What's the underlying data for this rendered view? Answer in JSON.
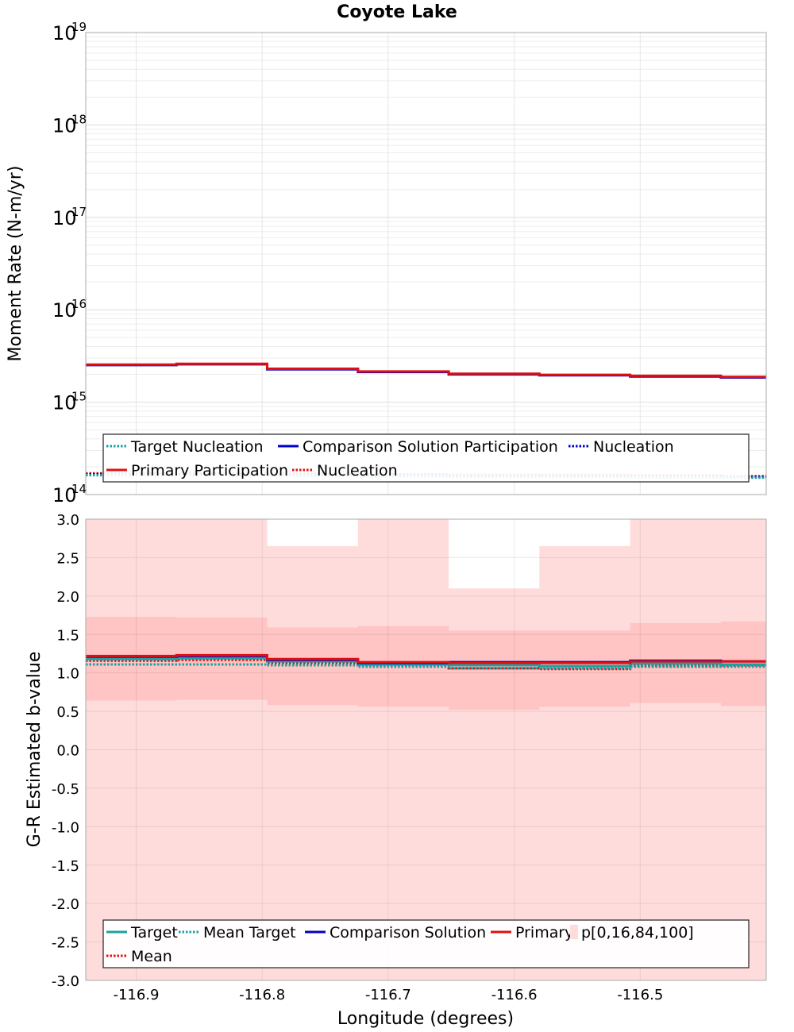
{
  "colors": {
    "target": "#1aa3a3",
    "comparison": "#0000cc",
    "primary": "#e01010",
    "band_outer": "#ffdcdc",
    "band_inner": "#ffc4c4",
    "grid": "#e2e2e2"
  },
  "chart_data": [
    {
      "type": "line",
      "title": "Coyote Lake",
      "xlabel": "",
      "ylabel": "Moment Rate (N-m/yr)",
      "yscale": "log",
      "ylim": [
        100000000000000.0,
        1e+19
      ],
      "xlim": [
        -116.94,
        -116.4
      ],
      "ytick_labels": [
        {
          "base": "10",
          "exp": "19"
        },
        {
          "base": "10",
          "exp": "18"
        },
        {
          "base": "10",
          "exp": "17"
        },
        {
          "base": "10",
          "exp": "16"
        },
        {
          "base": "10",
          "exp": "15"
        },
        {
          "base": "10",
          "exp": "14"
        }
      ],
      "bin_edges": [
        -116.94,
        -116.868,
        -116.796,
        -116.724,
        -116.652,
        -116.58,
        -116.508,
        -116.436,
        -116.4
      ],
      "series": [
        {
          "name": "Primary Participation",
          "style": "solid",
          "color": "primary",
          "values": [
            2550000000000000.0,
            2600000000000000.0,
            2300000000000000.0,
            2150000000000000.0,
            2030000000000000.0,
            1980000000000000.0,
            1930000000000000.0,
            1880000000000000.0
          ]
        },
        {
          "name": "Comparison Solution Participation",
          "style": "solid",
          "color": "comparison",
          "values": [
            2520000000000000.0,
            2570000000000000.0,
            2270000000000000.0,
            2120000000000000.0,
            2000000000000000.0,
            1950000000000000.0,
            1900000000000000.0,
            1850000000000000.0
          ]
        },
        {
          "name": "Target Nucleation",
          "style": "dotted",
          "color": "target",
          "values": [
            162000000000000.0,
            162000000000000.0,
            160000000000000.0,
            158000000000000.0,
            156000000000000.0,
            155000000000000.0,
            154000000000000.0,
            152000000000000.0
          ]
        },
        {
          "name": "Nucleation (comparison)",
          "style": "dotted",
          "color": "comparison",
          "values": [
            166000000000000.0,
            166000000000000.0,
            164000000000000.0,
            162000000000000.0,
            160000000000000.0,
            159000000000000.0,
            158000000000000.0,
            155000000000000.0
          ]
        },
        {
          "name": "Nucleation (primary)",
          "style": "dotted",
          "color": "primary",
          "values": [
            170000000000000.0,
            170000000000000.0,
            168000000000000.0,
            166000000000000.0,
            164000000000000.0,
            163000000000000.0,
            161000000000000.0,
            158000000000000.0
          ]
        }
      ],
      "legend": [
        {
          "label": "Target Nucleation",
          "style": "dotted",
          "color": "target"
        },
        {
          "label": "Comparison Solution Participation",
          "style": "solid",
          "color": "comparison"
        },
        {
          "label": "Nucleation",
          "style": "dotted",
          "color": "comparison"
        },
        {
          "label": "Primary Participation",
          "style": "solid",
          "color": "primary"
        },
        {
          "label": "Nucleation",
          "style": "dotted",
          "color": "primary"
        }
      ],
      "legend_placement": "bottom"
    },
    {
      "type": "line",
      "title": "",
      "xlabel": "Longitude (degrees)",
      "ylabel": "G-R Estimated b-value",
      "ylim": [
        -3.0,
        3.0
      ],
      "xlim": [
        -116.94,
        -116.4
      ],
      "yticks": [
        3.0,
        2.5,
        2.0,
        1.5,
        1.0,
        0.5,
        0.0,
        -0.5,
        -1.0,
        -1.5,
        -2.0,
        -2.5,
        -3.0
      ],
      "ytick_labels": [
        "3.0",
        "2.5",
        "2.0",
        "1.5",
        "1.0",
        "0.5",
        "0.0",
        "-0.5",
        "-1.0",
        "-1.5",
        "-2.0",
        "-2.5",
        "-3.0"
      ],
      "xticks": [
        -116.9,
        -116.8,
        -116.7,
        -116.6,
        -116.5
      ],
      "xtick_labels": [
        "-116.9",
        "-116.8",
        "-116.7",
        "-116.6",
        "-116.5"
      ],
      "bin_edges": [
        -116.94,
        -116.868,
        -116.796,
        -116.724,
        -116.652,
        -116.58,
        -116.508,
        -116.436,
        -116.4
      ],
      "band_outer": {
        "name": "p[0,100]",
        "lower": [
          -3.0,
          -3.0,
          -3.0,
          -3.0,
          -3.0,
          -3.0,
          -3.0,
          -3.0
        ],
        "upper": [
          3.0,
          3.0,
          2.65,
          3.0,
          2.1,
          2.65,
          3.0,
          3.0
        ]
      },
      "band_inner": {
        "name": "p[16,84]",
        "lower": [
          0.64,
          0.65,
          0.58,
          0.56,
          0.52,
          0.56,
          0.61,
          0.57
        ],
        "upper": [
          1.73,
          1.72,
          1.59,
          1.61,
          1.55,
          1.55,
          1.65,
          1.67
        ]
      },
      "series": [
        {
          "name": "Primary",
          "style": "solid",
          "color": "primary",
          "values": [
            1.22,
            1.23,
            1.18,
            1.14,
            1.13,
            1.13,
            1.15,
            1.15
          ]
        },
        {
          "name": "Comparison Solution",
          "style": "solid",
          "color": "comparison",
          "values": [
            1.21,
            1.22,
            1.17,
            1.13,
            1.14,
            1.14,
            1.16,
            1.15
          ]
        },
        {
          "name": "Target",
          "style": "solid",
          "color": "target",
          "values": [
            1.18,
            1.19,
            1.15,
            1.11,
            1.1,
            1.09,
            1.12,
            1.11
          ]
        },
        {
          "name": "Mean Target",
          "style": "dotted",
          "color": "target",
          "values": [
            1.11,
            1.11,
            1.1,
            1.08,
            1.06,
            1.06,
            1.08,
            1.08
          ]
        },
        {
          "name": "Mean",
          "style": "dotted",
          "color": "primary",
          "values": [
            1.16,
            1.17,
            1.13,
            1.1,
            1.06,
            1.05,
            1.09,
            1.1
          ]
        }
      ],
      "legend": [
        {
          "label": "Target",
          "style": "solid",
          "color": "target"
        },
        {
          "label": "Mean Target",
          "style": "dotted",
          "color": "target"
        },
        {
          "label": "Comparison Solution",
          "style": "solid",
          "color": "comparison"
        },
        {
          "label": "Primary",
          "style": "solid",
          "color": "primary"
        },
        {
          "label": "p[0,16,84,100]",
          "style": "box",
          "color": "band_outer"
        },
        {
          "label": "Mean",
          "style": "dotted",
          "color": "primary"
        }
      ],
      "legend_placement": "bottom"
    }
  ]
}
